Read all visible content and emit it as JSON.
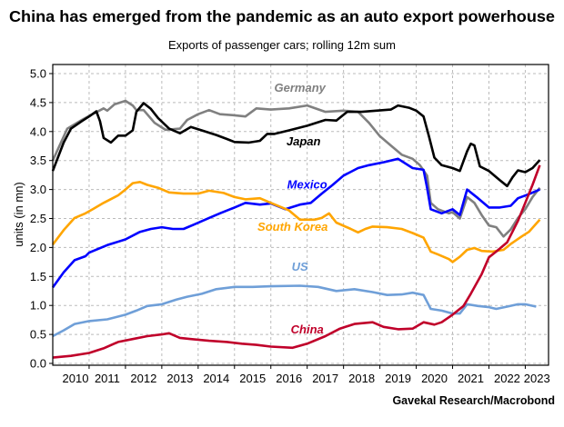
{
  "chart_data": {
    "type": "line",
    "title": "China has emerged from the pandemic as an auto export powerhouse",
    "subtitle": "Exports of passenger cars; rolling 12m sum",
    "ylabel": "units (in mn)",
    "xlabel": "",
    "source": "Gavekal Research/Macrobond",
    "ylim": [
      0,
      5.15
    ],
    "xlim": [
      2010.0,
      2023.64
    ],
    "grid": true,
    "yticks": [
      "0.0",
      "0.5",
      "1.0",
      "1.5",
      "2.0",
      "2.5",
      "3.0",
      "3.5",
      "4.0",
      "4.5",
      "5.0"
    ],
    "xticks": [
      "2010",
      "2011",
      "2012",
      "2013",
      "2014",
      "2015",
      "2016",
      "2017",
      "2018",
      "2019",
      "2020",
      "2021",
      "2022",
      "2023"
    ],
    "series": [
      {
        "name": "Germany",
        "color": "#808080",
        "label_at": [
          2016.8,
          4.69
        ],
        "x": [
          2010.0,
          2010.4,
          2010.8,
          2011.0,
          2011.4,
          2011.5,
          2011.7,
          2012.0,
          2012.2,
          2012.3,
          2012.5,
          2012.8,
          2013.1,
          2013.5,
          2013.7,
          2014.0,
          2014.3,
          2014.6,
          2015.0,
          2015.3,
          2015.6,
          2016.0,
          2016.5,
          2017.0,
          2017.5,
          2018.0,
          2018.4,
          2018.7,
          2019.0,
          2019.3,
          2019.6,
          2019.9,
          2020.1,
          2020.3,
          2020.4,
          2020.6,
          2020.9,
          2021.0,
          2021.2,
          2021.4,
          2021.6,
          2021.8,
          2022.0,
          2022.2,
          2022.4,
          2022.6,
          2022.8,
          2023.0,
          2023.2,
          2023.4
        ],
        "y": [
          3.5,
          4.05,
          4.2,
          4.27,
          4.4,
          4.36,
          4.47,
          4.53,
          4.45,
          4.37,
          4.37,
          4.15,
          4.03,
          4.05,
          4.2,
          4.3,
          4.37,
          4.3,
          4.28,
          4.26,
          4.4,
          4.38,
          4.4,
          4.45,
          4.34,
          4.36,
          4.34,
          4.15,
          3.92,
          3.76,
          3.6,
          3.53,
          3.42,
          3.24,
          2.77,
          2.66,
          2.59,
          2.61,
          2.5,
          2.87,
          2.77,
          2.56,
          2.38,
          2.35,
          2.19,
          2.31,
          2.51,
          2.66,
          2.87,
          3.03
        ]
      },
      {
        "name": "Japan",
        "color": "#000000",
        "label_at": [
          2016.9,
          3.76
        ],
        "x": [
          2010.0,
          2010.3,
          2010.5,
          2010.8,
          2011.0,
          2011.2,
          2011.3,
          2011.4,
          2011.6,
          2011.8,
          2012.0,
          2012.2,
          2012.3,
          2012.5,
          2012.7,
          2012.9,
          2013.2,
          2013.5,
          2013.8,
          2014.1,
          2014.5,
          2014.8,
          2015.0,
          2015.4,
          2015.7,
          2015.9,
          2016.1,
          2016.5,
          2017.0,
          2017.5,
          2017.8,
          2018.1,
          2018.5,
          2018.9,
          2019.3,
          2019.5,
          2019.8,
          2020.0,
          2020.2,
          2020.35,
          2020.5,
          2020.7,
          2021.0,
          2021.2,
          2021.4,
          2021.5,
          2021.6,
          2021.75,
          2022.0,
          2022.3,
          2022.5,
          2022.65,
          2022.8,
          2023.0,
          2023.2,
          2023.4
        ],
        "y": [
          3.32,
          3.81,
          4.05,
          4.18,
          4.26,
          4.35,
          4.18,
          3.89,
          3.81,
          3.93,
          3.93,
          4.02,
          4.34,
          4.49,
          4.39,
          4.23,
          4.05,
          3.97,
          4.08,
          4.02,
          3.94,
          3.87,
          3.82,
          3.81,
          3.84,
          3.96,
          3.96,
          4.02,
          4.1,
          4.2,
          4.19,
          4.34,
          4.34,
          4.36,
          4.38,
          4.45,
          4.41,
          4.36,
          4.26,
          3.92,
          3.55,
          3.42,
          3.37,
          3.32,
          3.66,
          3.79,
          3.76,
          3.4,
          3.32,
          3.16,
          3.06,
          3.21,
          3.33,
          3.3,
          3.37,
          3.51
        ]
      },
      {
        "name": "Mexico",
        "color": "#0000ff",
        "label_at": [
          2017.0,
          3.02
        ],
        "x": [
          2010.0,
          2010.3,
          2010.6,
          2010.9,
          2011.0,
          2011.5,
          2012.0,
          2012.4,
          2012.7,
          2013.0,
          2013.3,
          2013.6,
          2013.9,
          2014.3,
          2014.6,
          2015.0,
          2015.3,
          2015.7,
          2016.0,
          2016.4,
          2016.8,
          2017.1,
          2017.4,
          2017.7,
          2018.0,
          2018.4,
          2018.7,
          2019.1,
          2019.5,
          2019.9,
          2020.2,
          2020.3,
          2020.4,
          2020.7,
          2021.0,
          2021.2,
          2021.4,
          2021.7,
          2022.0,
          2022.3,
          2022.6,
          2022.8,
          2023.1,
          2023.4
        ],
        "y": [
          1.31,
          1.57,
          1.78,
          1.85,
          1.91,
          2.04,
          2.14,
          2.27,
          2.32,
          2.35,
          2.32,
          2.32,
          2.4,
          2.51,
          2.59,
          2.69,
          2.77,
          2.74,
          2.76,
          2.66,
          2.74,
          2.77,
          2.93,
          3.08,
          3.24,
          3.37,
          3.42,
          3.47,
          3.53,
          3.37,
          3.34,
          3.03,
          2.66,
          2.59,
          2.66,
          2.56,
          3.0,
          2.85,
          2.69,
          2.69,
          2.72,
          2.85,
          2.92,
          3.0
        ]
      },
      {
        "name": "South Korea",
        "color": "#ffa500",
        "label_at": [
          2016.6,
          2.29
        ],
        "x": [
          2010.0,
          2010.3,
          2010.6,
          2010.9,
          2011.1,
          2011.4,
          2011.8,
          2012.0,
          2012.2,
          2012.4,
          2012.6,
          2012.9,
          2013.2,
          2013.6,
          2014.0,
          2014.3,
          2014.7,
          2015.0,
          2015.3,
          2015.7,
          2016.0,
          2016.5,
          2016.8,
          2017.2,
          2017.4,
          2017.6,
          2017.8,
          2018.2,
          2018.4,
          2018.6,
          2018.8,
          2019.2,
          2019.6,
          2019.9,
          2020.2,
          2020.4,
          2020.6,
          2020.9,
          2021.0,
          2021.2,
          2021.4,
          2021.6,
          2021.8,
          2022.1,
          2022.4,
          2022.6,
          2022.9,
          2023.1,
          2023.4
        ],
        "y": [
          2.05,
          2.3,
          2.51,
          2.59,
          2.66,
          2.77,
          2.9,
          3.0,
          3.11,
          3.13,
          3.08,
          3.03,
          2.95,
          2.93,
          2.93,
          2.98,
          2.94,
          2.87,
          2.83,
          2.85,
          2.77,
          2.64,
          2.48,
          2.48,
          2.51,
          2.59,
          2.43,
          2.32,
          2.26,
          2.32,
          2.36,
          2.35,
          2.32,
          2.25,
          2.17,
          1.93,
          1.88,
          1.8,
          1.75,
          1.84,
          1.96,
          1.99,
          1.94,
          1.93,
          1.96,
          2.06,
          2.19,
          2.27,
          2.48
        ]
      },
      {
        "name": "US",
        "color": "#6f9fd8",
        "label_at": [
          2016.8,
          1.6
        ],
        "x": [
          2010.0,
          2010.3,
          2010.6,
          2011.0,
          2011.5,
          2012.0,
          2012.3,
          2012.6,
          2013.0,
          2013.4,
          2013.7,
          2014.1,
          2014.5,
          2015.0,
          2015.5,
          2016.0,
          2016.8,
          2017.3,
          2017.8,
          2018.3,
          2018.8,
          2019.2,
          2019.6,
          2019.9,
          2020.2,
          2020.4,
          2020.7,
          2021.0,
          2021.2,
          2021.4,
          2021.7,
          2022.0,
          2022.2,
          2022.5,
          2022.8,
          2023.0,
          2023.3
        ],
        "y": [
          0.47,
          0.57,
          0.68,
          0.73,
          0.76,
          0.84,
          0.91,
          0.99,
          1.02,
          1.1,
          1.15,
          1.2,
          1.28,
          1.32,
          1.32,
          1.33,
          1.34,
          1.32,
          1.25,
          1.28,
          1.23,
          1.18,
          1.19,
          1.22,
          1.18,
          0.94,
          0.91,
          0.86,
          0.86,
          1.02,
          0.99,
          0.97,
          0.94,
          0.98,
          1.02,
          1.02,
          0.98
        ]
      },
      {
        "name": "China",
        "color": "#c0002a",
        "label_at": [
          2017.0,
          0.52
        ],
        "x": [
          2010.0,
          2010.5,
          2011.0,
          2011.4,
          2011.8,
          2012.2,
          2012.6,
          2013.0,
          2013.2,
          2013.5,
          2013.8,
          2014.3,
          2014.8,
          2015.2,
          2015.6,
          2016.0,
          2016.6,
          2017.0,
          2017.5,
          2017.9,
          2018.3,
          2018.8,
          2019.1,
          2019.5,
          2019.9,
          2020.2,
          2020.5,
          2020.7,
          2021.0,
          2021.3,
          2021.5,
          2021.8,
          2022.0,
          2022.2,
          2022.5,
          2022.8,
          2023.0,
          2023.2,
          2023.4
        ],
        "y": [
          0.1,
          0.13,
          0.18,
          0.26,
          0.37,
          0.42,
          0.47,
          0.5,
          0.52,
          0.44,
          0.42,
          0.39,
          0.37,
          0.34,
          0.32,
          0.29,
          0.27,
          0.34,
          0.47,
          0.6,
          0.68,
          0.71,
          0.63,
          0.59,
          0.6,
          0.71,
          0.67,
          0.71,
          0.84,
          0.99,
          1.2,
          1.54,
          1.83,
          1.93,
          2.09,
          2.46,
          2.77,
          3.08,
          3.42
        ]
      }
    ]
  }
}
